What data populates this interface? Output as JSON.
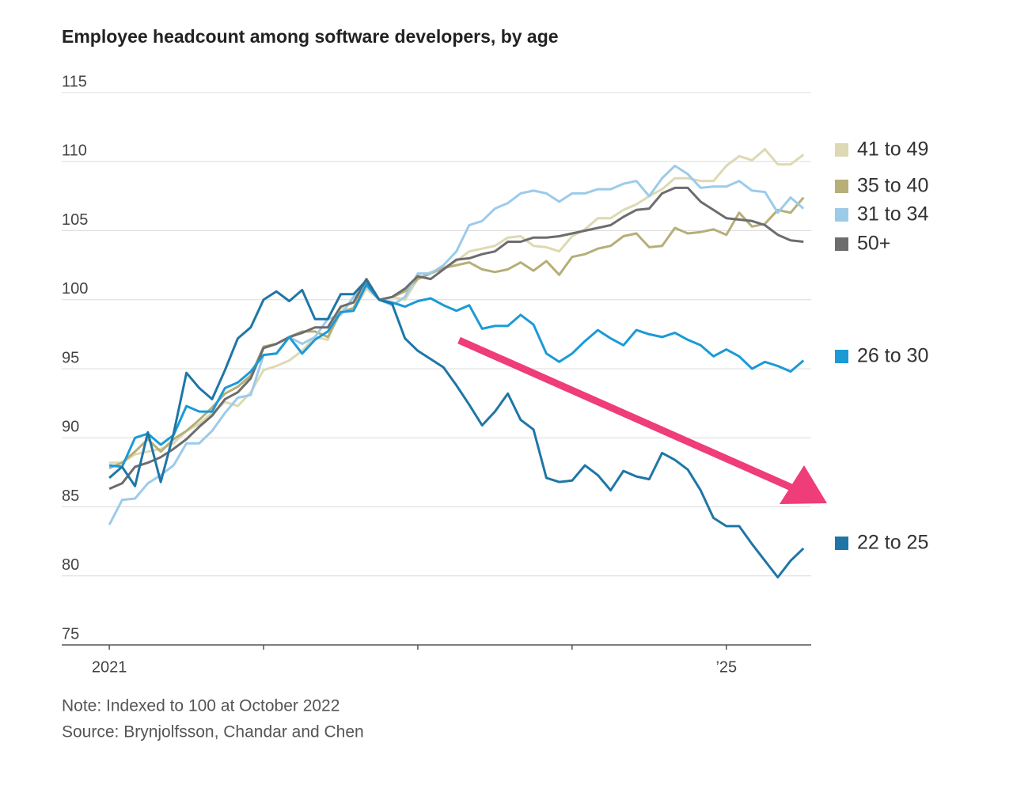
{
  "chart_data": {
    "type": "line",
    "title": "Employee headcount among software developers, by age",
    "notes": [
      "Note: Indexed to 100 at October 2022",
      "Source: Brynjolfsson, Chandar and Chen"
    ],
    "x": [
      0,
      1,
      2,
      3,
      4,
      5,
      6,
      7,
      8,
      9,
      10,
      11,
      12,
      13,
      14,
      15,
      16,
      17,
      18,
      19,
      20,
      21,
      22,
      23,
      24,
      25,
      26,
      27,
      28,
      29,
      30,
      31,
      32,
      33,
      34,
      35,
      36,
      37,
      38,
      39,
      40,
      41,
      42,
      43,
      44,
      45,
      46,
      47,
      48,
      49,
      50,
      51,
      52,
      53,
      54
    ],
    "xlim": [
      -3.7,
      54.6
    ],
    "xticks": [
      {
        "value": 0,
        "label": "2021"
      },
      {
        "value": 12,
        "label": null
      },
      {
        "value": 24,
        "label": null
      },
      {
        "value": 36,
        "label": null
      },
      {
        "value": 48,
        "label": "’25"
      }
    ],
    "ylim": [
      75,
      115
    ],
    "yticks": [
      75,
      80,
      85,
      90,
      95,
      100,
      105,
      110,
      115
    ],
    "grid": true,
    "series": [
      {
        "name": "41 to 49",
        "color": "#ddd9b3",
        "values": [
          88.2,
          88.2,
          88.8,
          89.0,
          89.2,
          89.6,
          90.5,
          91.0,
          91.8,
          92.6,
          92.3,
          93.3,
          94.9,
          95.2,
          95.6,
          96.3,
          97.3,
          97.1,
          99.4,
          99.2,
          100.8,
          100.0,
          100.2,
          100.0,
          101.5,
          102.0,
          102.3,
          102.8,
          103.5,
          103.7,
          103.9,
          104.5,
          104.6,
          103.9,
          103.8,
          103.5,
          104.6,
          105.1,
          105.9,
          105.9,
          106.5,
          106.9,
          107.5,
          108.0,
          108.8,
          108.8,
          108.6,
          108.6,
          109.7,
          110.4,
          110.1,
          110.9,
          109.8,
          109.8,
          110.5
        ]
      },
      {
        "name": "35 to 40",
        "color": "#b7ae78",
        "values": [
          87.8,
          88.2,
          89.0,
          89.9,
          89.0,
          89.9,
          90.5,
          91.3,
          92.2,
          93.2,
          93.7,
          94.5,
          96.6,
          96.8,
          97.3,
          97.7,
          97.7,
          97.3,
          99.1,
          99.4,
          101.2,
          100.0,
          100.2,
          100.6,
          101.5,
          101.9,
          102.3,
          102.5,
          102.7,
          102.2,
          102.0,
          102.2,
          102.7,
          102.1,
          102.8,
          101.8,
          103.1,
          103.3,
          103.7,
          103.9,
          104.6,
          104.8,
          103.8,
          103.9,
          105.2,
          104.8,
          104.9,
          105.1,
          104.7,
          106.3,
          105.3,
          105.5,
          106.5,
          106.3,
          107.4
        ]
      },
      {
        "name": "31 to 34",
        "color": "#9ccbea",
        "values": [
          83.7,
          85.5,
          85.6,
          86.7,
          87.3,
          88.0,
          89.6,
          89.6,
          90.5,
          91.8,
          92.9,
          93.1,
          96.0,
          96.1,
          97.3,
          96.8,
          97.3,
          98.6,
          98.9,
          100.2,
          101.0,
          100.0,
          99.6,
          100.2,
          101.9,
          101.9,
          102.5,
          103.5,
          105.4,
          105.7,
          106.6,
          107.0,
          107.7,
          107.9,
          107.7,
          107.1,
          107.7,
          107.7,
          108.0,
          108.0,
          108.4,
          108.6,
          107.5,
          108.8,
          109.7,
          109.1,
          108.1,
          108.2,
          108.2,
          108.6,
          107.9,
          107.8,
          106.3,
          107.4,
          106.6
        ]
      },
      {
        "name": "50+",
        "color": "#6d6d6d",
        "values": [
          86.3,
          86.7,
          87.9,
          88.2,
          88.6,
          89.2,
          89.9,
          90.8,
          91.6,
          92.8,
          93.3,
          94.3,
          96.5,
          96.8,
          97.3,
          97.6,
          98.0,
          98.0,
          99.5,
          99.8,
          101.5,
          100.0,
          100.2,
          100.8,
          101.7,
          101.5,
          102.2,
          102.9,
          103.0,
          103.3,
          103.5,
          104.2,
          104.2,
          104.5,
          104.5,
          104.6,
          104.8,
          105.0,
          105.2,
          105.4,
          106.0,
          106.5,
          106.6,
          107.7,
          108.1,
          108.1,
          107.1,
          106.5,
          105.9,
          105.8,
          105.7,
          105.4,
          104.7,
          104.3,
          104.2
        ]
      },
      {
        "name": "26 to 30",
        "color": "#1b9ad6",
        "values": [
          88.0,
          87.9,
          90.0,
          90.3,
          89.5,
          90.2,
          92.3,
          91.9,
          91.9,
          93.6,
          94.0,
          94.8,
          96.0,
          96.1,
          97.3,
          96.1,
          97.1,
          97.7,
          99.1,
          99.2,
          101.1,
          100.0,
          99.8,
          99.5,
          99.9,
          100.1,
          99.6,
          99.2,
          99.6,
          97.9,
          98.1,
          98.1,
          98.9,
          98.2,
          96.1,
          95.5,
          96.1,
          97.0,
          97.8,
          97.2,
          96.7,
          97.8,
          97.5,
          97.3,
          97.6,
          97.1,
          96.7,
          95.9,
          96.4,
          95.9,
          95.0,
          95.5,
          95.2,
          94.8,
          95.6
        ]
      },
      {
        "name": "22 to 25",
        "color": "#1f76a6",
        "values": [
          87.1,
          87.9,
          86.5,
          90.4,
          86.8,
          90.3,
          94.7,
          93.6,
          92.8,
          94.9,
          97.2,
          98.0,
          100.0,
          100.6,
          99.9,
          100.7,
          98.6,
          98.6,
          100.4,
          100.4,
          101.4,
          100.0,
          99.7,
          97.2,
          96.3,
          95.7,
          95.1,
          93.8,
          92.4,
          90.9,
          91.9,
          93.2,
          91.3,
          90.6,
          87.1,
          86.8,
          86.9,
          88.0,
          87.3,
          86.2,
          87.6,
          87.2,
          87.0,
          88.9,
          88.4,
          87.7,
          86.2,
          84.2,
          83.6,
          83.6,
          82.3,
          81.1,
          79.9,
          81.1,
          82.0
        ]
      }
    ]
  }
}
